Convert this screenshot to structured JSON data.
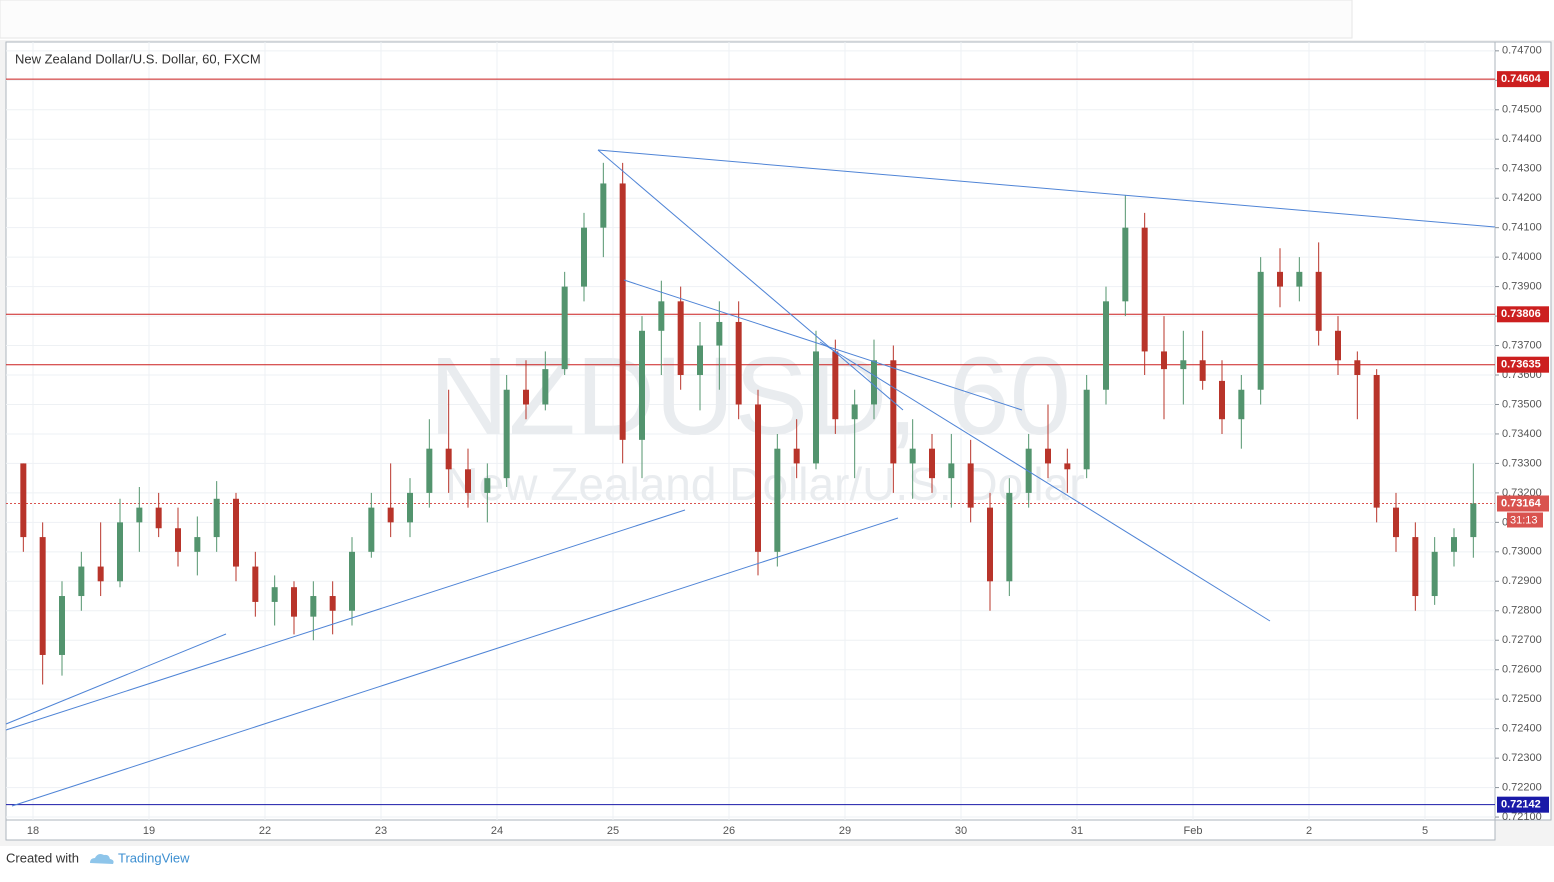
{
  "chart_data": {
    "type": "candlestick",
    "title": "New Zealand Dollar/U.S. Dollar, 60, FXCM",
    "watermark": "NZDUSD, 60",
    "watermark_subtitle": "New Zealand Dollar/U.S. Dollar",
    "categories": [
      null,
      "18",
      null,
      null,
      null,
      null,
      null,
      "19",
      null,
      null,
      null,
      null,
      null,
      "22",
      null,
      null,
      null,
      null,
      null,
      "23",
      null,
      null,
      null,
      null,
      null,
      "24",
      null,
      null,
      null,
      null,
      null,
      "25",
      null,
      null,
      null,
      null,
      null,
      "26",
      null,
      null,
      null,
      null,
      null,
      "29",
      null,
      null,
      null,
      null,
      null,
      "30",
      null,
      null,
      null,
      null,
      null,
      "31",
      null,
      null,
      null,
      null,
      null,
      "Feb",
      null,
      null,
      null,
      null,
      null,
      "2",
      null,
      null,
      null,
      null,
      null,
      "5",
      null,
      null
    ],
    "open": [
      0.733,
      0.7305,
      0.7265,
      0.7285,
      0.7295,
      0.729,
      0.731,
      0.7315,
      0.7308,
      0.73,
      0.7305,
      0.7318,
      0.7295,
      0.7283,
      0.7288,
      0.7278,
      0.7285,
      0.728,
      0.73,
      0.7315,
      0.731,
      0.732,
      0.7335,
      0.7328,
      0.732,
      0.7325,
      0.7355,
      0.735,
      0.7362,
      0.739,
      0.741,
      0.7425,
      0.7338,
      0.7375,
      0.7385,
      0.736,
      0.737,
      0.7378,
      0.735,
      0.73,
      0.7335,
      0.733,
      0.7368,
      0.7345,
      0.735,
      0.7365,
      0.733,
      0.7335,
      0.7325,
      0.733,
      0.7315,
      0.729,
      0.732,
      0.7335,
      0.733,
      0.7328,
      0.7355,
      0.7385,
      0.741,
      0.7368,
      0.7362,
      0.7365,
      0.7358,
      0.7345,
      0.7355,
      0.7395,
      0.739,
      0.7395,
      0.7375,
      0.7365,
      0.736,
      0.7315,
      0.7305,
      0.7285,
      0.73,
      0.7305
    ],
    "high": [
      0.733,
      0.731,
      0.729,
      0.73,
      0.731,
      0.7318,
      0.7322,
      0.732,
      0.7315,
      0.7312,
      0.7324,
      0.732,
      0.73,
      0.7292,
      0.729,
      0.729,
      0.729,
      0.7305,
      0.732,
      0.733,
      0.7325,
      0.7345,
      0.7355,
      0.7335,
      0.733,
      0.736,
      0.7365,
      0.7368,
      0.7395,
      0.7415,
      0.7432,
      0.7432,
      0.738,
      0.7392,
      0.739,
      0.7378,
      0.7385,
      0.7385,
      0.7355,
      0.734,
      0.7345,
      0.7375,
      0.7372,
      0.7355,
      0.7372,
      0.737,
      0.7345,
      0.734,
      0.734,
      0.7338,
      0.732,
      0.7325,
      0.734,
      0.735,
      0.7335,
      0.736,
      0.739,
      0.7421,
      0.7415,
      0.738,
      0.7375,
      0.7375,
      0.7365,
      0.736,
      0.74,
      0.7403,
      0.74,
      0.7405,
      0.738,
      0.7368,
      0.7362,
      0.732,
      0.731,
      0.7305,
      0.7308,
      0.733
    ],
    "low": [
      0.73,
      0.7255,
      0.7258,
      0.728,
      0.7285,
      0.7288,
      0.73,
      0.7305,
      0.7295,
      0.7292,
      0.73,
      0.729,
      0.7278,
      0.7275,
      0.7272,
      0.727,
      0.7272,
      0.7275,
      0.7298,
      0.7305,
      0.7305,
      0.7315,
      0.732,
      0.7315,
      0.731,
      0.7322,
      0.7345,
      0.7348,
      0.736,
      0.7385,
      0.74,
      0.733,
      0.7325,
      0.736,
      0.7355,
      0.7348,
      0.7355,
      0.7345,
      0.7292,
      0.7295,
      0.7325,
      0.7328,
      0.734,
      0.7325,
      0.7345,
      0.732,
      0.7318,
      0.732,
      0.7315,
      0.731,
      0.728,
      0.7285,
      0.7315,
      0.7325,
      0.732,
      0.7325,
      0.735,
      0.738,
      0.736,
      0.7345,
      0.735,
      0.7355,
      0.734,
      0.7335,
      0.735,
      0.7383,
      0.7385,
      0.737,
      0.736,
      0.7345,
      0.731,
      0.73,
      0.728,
      0.7282,
      0.7295,
      0.7298
    ],
    "close": [
      0.7305,
      0.7265,
      0.7285,
      0.7295,
      0.729,
      0.731,
      0.7315,
      0.7308,
      0.73,
      0.7305,
      0.7318,
      0.7295,
      0.7283,
      0.7288,
      0.7278,
      0.7285,
      0.728,
      0.73,
      0.7315,
      0.731,
      0.732,
      0.7335,
      0.7328,
      0.732,
      0.7325,
      0.7355,
      0.735,
      0.7362,
      0.739,
      0.741,
      0.7425,
      0.7338,
      0.7375,
      0.7385,
      0.736,
      0.737,
      0.7378,
      0.735,
      0.73,
      0.7335,
      0.733,
      0.7368,
      0.7345,
      0.735,
      0.7365,
      0.733,
      0.7335,
      0.7325,
      0.733,
      0.7315,
      0.729,
      0.732,
      0.7335,
      0.733,
      0.7328,
      0.7355,
      0.7385,
      0.741,
      0.7368,
      0.7362,
      0.7365,
      0.7358,
      0.7345,
      0.7355,
      0.7395,
      0.739,
      0.7395,
      0.7375,
      0.7365,
      0.736,
      0.7315,
      0.7305,
      0.7285,
      0.73,
      0.7305,
      0.73164
    ],
    "up_color": "#53946e",
    "down_color": "#b8342a",
    "ylim": [
      0.7209,
      0.7473
    ],
    "yticks": [
      {
        "value": 0.721,
        "label": "0.72100"
      },
      {
        "value": 0.722,
        "label": "0.72200"
      },
      {
        "value": 0.723,
        "label": "0.72300"
      },
      {
        "value": 0.724,
        "label": "0.72400"
      },
      {
        "value": 0.725,
        "label": "0.72500"
      },
      {
        "value": 0.726,
        "label": "0.72600"
      },
      {
        "value": 0.727,
        "label": "0.72700"
      },
      {
        "value": 0.728,
        "label": "0.72800"
      },
      {
        "value": 0.729,
        "label": "0.72900"
      },
      {
        "value": 0.73,
        "label": "0.73000"
      },
      {
        "value": 0.731,
        "label": "0.73100"
      },
      {
        "value": 0.732,
        "label": "0.73200"
      },
      {
        "value": 0.733,
        "label": "0.73300"
      },
      {
        "value": 0.734,
        "label": "0.73400"
      },
      {
        "value": 0.735,
        "label": "0.73500"
      },
      {
        "value": 0.736,
        "label": "0.73600"
      },
      {
        "value": 0.737,
        "label": "0.73700"
      },
      {
        "value": 0.738,
        "label": "0.73800"
      },
      {
        "value": 0.739,
        "label": "0.73900"
      },
      {
        "value": 0.74,
        "label": "0.74000"
      },
      {
        "value": 0.741,
        "label": "0.74100"
      },
      {
        "value": 0.742,
        "label": "0.74200"
      },
      {
        "value": 0.743,
        "label": "0.74300"
      },
      {
        "value": 0.744,
        "label": "0.74400"
      },
      {
        "value": 0.745,
        "label": "0.74500"
      },
      {
        "value": 0.746,
        "label": "0.74600"
      },
      {
        "value": 0.747,
        "label": "0.74700"
      }
    ],
    "grid": true,
    "levels": [
      {
        "value": 0.74604,
        "color": "#cc1f1f"
      },
      {
        "value": 0.73806,
        "color": "#cc1f1f"
      },
      {
        "value": 0.73635,
        "color": "#cc1f1f"
      },
      {
        "value": 0.72142,
        "color": "#1a1aa8"
      }
    ],
    "last_price": 0.73164,
    "last_price_color": "#d9534f",
    "countdown": "31:13"
  },
  "footer": {
    "created_with": "Created with",
    "brand": "TradingView"
  }
}
